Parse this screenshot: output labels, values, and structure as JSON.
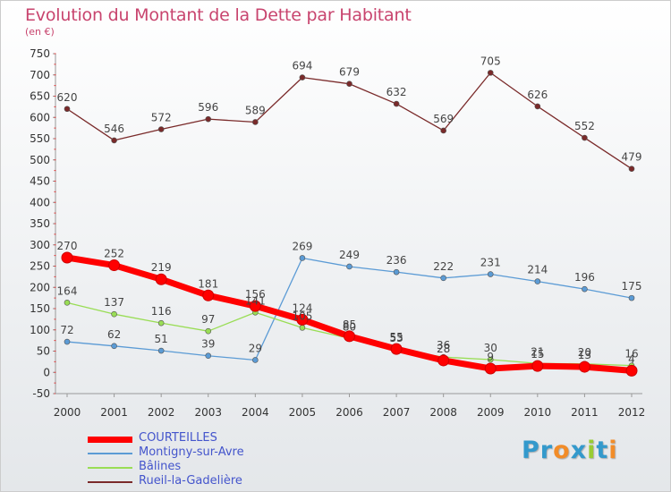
{
  "chart_data": {
    "type": "line",
    "title": "Evolution du Montant de la Dette par Habitant",
    "unit": "(en €)",
    "x": [
      "2000",
      "2001",
      "2002",
      "2003",
      "2004",
      "2005",
      "2006",
      "2007",
      "2008",
      "2009",
      "2010",
      "2011",
      "2012"
    ],
    "ylim": [
      -50,
      750
    ],
    "yticks": [
      -50,
      0,
      50,
      100,
      150,
      200,
      250,
      300,
      350,
      400,
      450,
      500,
      550,
      600,
      650,
      700,
      750
    ],
    "grid": false,
    "legend_position": "bottom-left",
    "series": [
      {
        "name": "COURTEILLES",
        "color": "#ff0000",
        "emphasis": true,
        "values": [
          270,
          252,
          219,
          181,
          156,
          124,
          85,
          55,
          28,
          9,
          15,
          13,
          4
        ]
      },
      {
        "name": "Montigny-sur-Avre",
        "color": "#5b9bd5",
        "emphasis": false,
        "values": [
          72,
          62,
          51,
          39,
          29,
          269,
          249,
          236,
          222,
          231,
          214,
          196,
          175
        ]
      },
      {
        "name": "Bâlines",
        "color": "#99dd55",
        "emphasis": false,
        "values": [
          164,
          137,
          116,
          97,
          141,
          105,
          80,
          53,
          36,
          30,
          21,
          20,
          16
        ]
      },
      {
        "name": "Rueil-la-Gadelière",
        "color": "#7a2a2a",
        "emphasis": false,
        "values": [
          620,
          546,
          572,
          596,
          589,
          694,
          679,
          632,
          569,
          705,
          626,
          552,
          479
        ]
      }
    ]
  },
  "logo": {
    "letters": [
      "P",
      "r",
      "o",
      "x",
      "i",
      "t",
      "i"
    ],
    "colors": [
      "#3399cc",
      "#3399cc",
      "#f28c28",
      "#3399cc",
      "#99cc33",
      "#3399cc",
      "#f28c28"
    ]
  }
}
